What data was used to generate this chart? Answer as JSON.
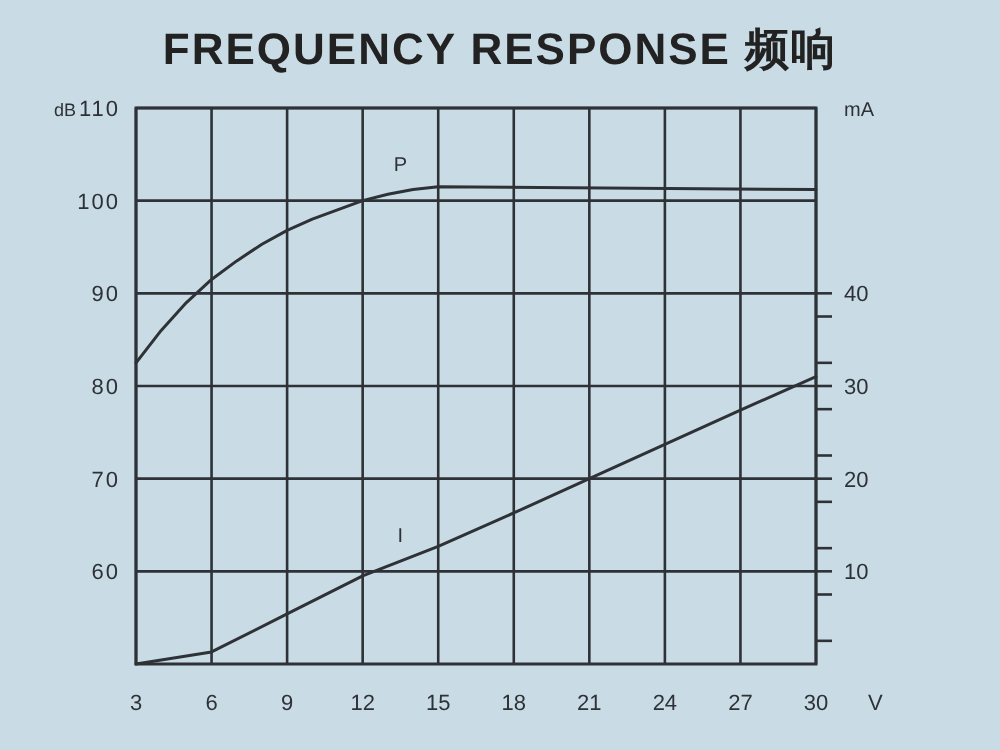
{
  "chart_data": {
    "type": "line",
    "title": "FREQUENCY RESPONSE 频响",
    "xlabel": "V",
    "ylabel": "dB",
    "y2label": "mA",
    "xlim": [
      3,
      30
    ],
    "xticks": [
      3,
      6,
      9,
      12,
      15,
      18,
      21,
      24,
      27,
      30
    ],
    "ylim": [
      50,
      110
    ],
    "yticks": [
      60,
      70,
      80,
      90,
      100,
      110
    ],
    "y2lim": [
      0,
      60
    ],
    "y2ticks": [
      {
        "value": 2.5,
        "label": null
      },
      {
        "value": 7.5,
        "label": null
      },
      10,
      {
        "value": 12.5,
        "label": null
      },
      {
        "value": 17.5,
        "label": null
      },
      20,
      {
        "value": 22.5,
        "label": null
      },
      {
        "value": 27.5,
        "label": null
      },
      30,
      {
        "value": 32.5,
        "label": null
      },
      {
        "value": 37.5,
        "label": null
      },
      40
    ],
    "grid": true,
    "marker": "none",
    "line_style": "solid",
    "series": [
      {
        "name": "P",
        "color": "#2e3136",
        "x": [
          3,
          4,
          5,
          6,
          7,
          8,
          9,
          10,
          11,
          12,
          13,
          14,
          15,
          30
        ],
        "values": [
          82.5,
          86,
          89,
          91.5,
          93.5,
          95.3,
          96.8,
          98,
          99,
          100,
          100.7,
          101.2,
          101.5,
          101.2
        ]
      },
      {
        "name": "I",
        "color": "#2e3136",
        "axis": "y2",
        "x": [
          3,
          6,
          9,
          12,
          15,
          18,
          21,
          24,
          27,
          30
        ],
        "values": [
          0,
          1.3,
          5.4,
          9.5,
          12.7,
          16.3,
          20,
          23.7,
          27.4,
          31
        ]
      }
    ]
  }
}
